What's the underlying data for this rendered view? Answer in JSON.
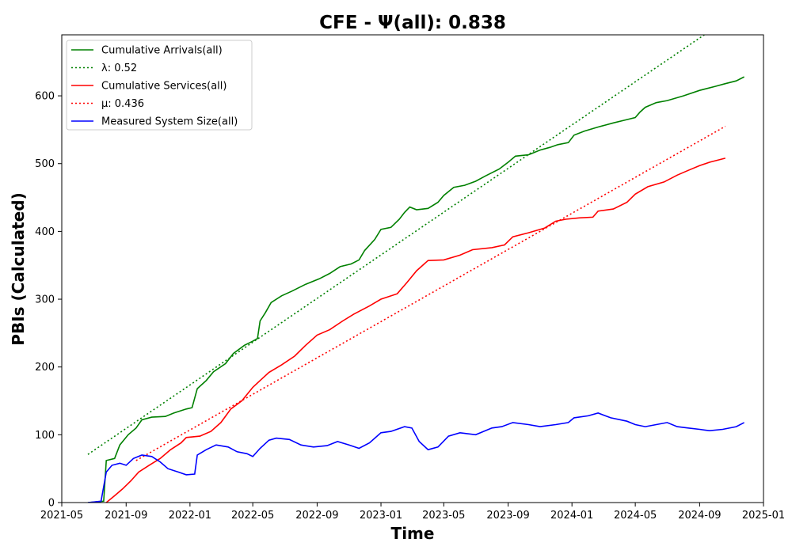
{
  "chart_data": {
    "type": "line",
    "title": "CFE -  Ψ(all): 0.838",
    "xlabel": "Time",
    "ylabel": "PBIs (Calculated)",
    "xlim": [
      "2021-05-01",
      "2025-01-01"
    ],
    "ylim": [
      0,
      690
    ],
    "x_ticks": [
      "2021-05",
      "2021-09",
      "2022-01",
      "2022-05",
      "2022-09",
      "2023-01",
      "2023-05",
      "2023-09",
      "2024-01",
      "2024-05",
      "2024-09",
      "2025-01"
    ],
    "y_ticks": [
      0,
      100,
      200,
      300,
      400,
      500,
      600
    ],
    "grid": false,
    "legend_position": "top-left",
    "series": [
      {
        "name": "Cumulative Arrivals(all)",
        "style": "solid",
        "color": "#008000",
        "points": [
          [
            "2021-06-20",
            0
          ],
          [
            "2021-07-20",
            2
          ],
          [
            "2021-07-25",
            62
          ],
          [
            "2021-08-10",
            65
          ],
          [
            "2021-08-20",
            85
          ],
          [
            "2021-09-05",
            100
          ],
          [
            "2021-09-20",
            110
          ],
          [
            "2021-10-01",
            122
          ],
          [
            "2021-10-20",
            126
          ],
          [
            "2021-11-15",
            127
          ],
          [
            "2021-12-01",
            132
          ],
          [
            "2021-12-25",
            138
          ],
          [
            "2022-01-05",
            140
          ],
          [
            "2022-01-15",
            168
          ],
          [
            "2022-02-01",
            180
          ],
          [
            "2022-02-15",
            193
          ],
          [
            "2022-03-10",
            205
          ],
          [
            "2022-03-25",
            220
          ],
          [
            "2022-04-15",
            232
          ],
          [
            "2022-05-01",
            238
          ],
          [
            "2022-05-10",
            242
          ],
          [
            "2022-05-15",
            268
          ],
          [
            "2022-05-25",
            280
          ],
          [
            "2022-06-05",
            295
          ],
          [
            "2022-06-25",
            305
          ],
          [
            "2022-07-15",
            312
          ],
          [
            "2022-08-10",
            322
          ],
          [
            "2022-09-05",
            330
          ],
          [
            "2022-09-25",
            338
          ],
          [
            "2022-10-15",
            348
          ],
          [
            "2022-11-05",
            352
          ],
          [
            "2022-11-20",
            358
          ],
          [
            "2022-12-01",
            372
          ],
          [
            "2022-12-20",
            388
          ],
          [
            "2023-01-01",
            403
          ],
          [
            "2023-01-20",
            406
          ],
          [
            "2023-02-05",
            418
          ],
          [
            "2023-02-15",
            428
          ],
          [
            "2023-02-25",
            436
          ],
          [
            "2023-03-10",
            432
          ],
          [
            "2023-04-01",
            434
          ],
          [
            "2023-04-20",
            443
          ],
          [
            "2023-05-01",
            453
          ],
          [
            "2023-05-20",
            465
          ],
          [
            "2023-06-10",
            468
          ],
          [
            "2023-07-01",
            474
          ],
          [
            "2023-07-20",
            482
          ],
          [
            "2023-08-15",
            492
          ],
          [
            "2023-09-01",
            502
          ],
          [
            "2023-09-15",
            511
          ],
          [
            "2023-10-10",
            513
          ],
          [
            "2023-11-01",
            520
          ],
          [
            "2023-11-20",
            524
          ],
          [
            "2023-12-05",
            528
          ],
          [
            "2023-12-25",
            531
          ],
          [
            "2024-01-05",
            542
          ],
          [
            "2024-01-25",
            548
          ],
          [
            "2024-02-20",
            554
          ],
          [
            "2024-03-20",
            560
          ],
          [
            "2024-04-15",
            565
          ],
          [
            "2024-05-01",
            568
          ],
          [
            "2024-05-10",
            576
          ],
          [
            "2024-05-20",
            583
          ],
          [
            "2024-06-10",
            590
          ],
          [
            "2024-07-01",
            593
          ],
          [
            "2024-08-01",
            600
          ],
          [
            "2024-09-01",
            608
          ],
          [
            "2024-10-01",
            614
          ],
          [
            "2024-10-20",
            618
          ],
          [
            "2024-11-10",
            622
          ],
          [
            "2024-11-25",
            628
          ]
        ]
      },
      {
        "name": "λ: 0.52",
        "style": "dotted",
        "color": "#008000",
        "points": [
          [
            "2021-06-20",
            71
          ],
          [
            "2024-11-25",
            730
          ]
        ]
      },
      {
        "name": "Cumulative Services(all)",
        "style": "solid",
        "color": "#ff0000",
        "points": [
          [
            "2021-07-25",
            0
          ],
          [
            "2021-08-10",
            10
          ],
          [
            "2021-08-25",
            20
          ],
          [
            "2021-09-10",
            32
          ],
          [
            "2021-09-25",
            45
          ],
          [
            "2021-10-15",
            55
          ],
          [
            "2021-11-05",
            65
          ],
          [
            "2021-11-25",
            78
          ],
          [
            "2021-12-15",
            88
          ],
          [
            "2021-12-25",
            96
          ],
          [
            "2022-01-20",
            98
          ],
          [
            "2022-02-10",
            105
          ],
          [
            "2022-03-01",
            118
          ],
          [
            "2022-03-20",
            138
          ],
          [
            "2022-04-10",
            150
          ],
          [
            "2022-05-01",
            170
          ],
          [
            "2022-05-15",
            180
          ],
          [
            "2022-06-01",
            192
          ],
          [
            "2022-06-25",
            203
          ],
          [
            "2022-07-20",
            216
          ],
          [
            "2022-08-10",
            232
          ],
          [
            "2022-09-01",
            247
          ],
          [
            "2022-09-25",
            255
          ],
          [
            "2022-10-20",
            268
          ],
          [
            "2022-11-10",
            278
          ],
          [
            "2022-12-10",
            290
          ],
          [
            "2023-01-01",
            300
          ],
          [
            "2023-02-01",
            308
          ],
          [
            "2023-02-20",
            325
          ],
          [
            "2023-03-10",
            342
          ],
          [
            "2023-04-01",
            357
          ],
          [
            "2023-05-01",
            358
          ],
          [
            "2023-06-01",
            365
          ],
          [
            "2023-06-25",
            373
          ],
          [
            "2023-08-01",
            376
          ],
          [
            "2023-08-25",
            380
          ],
          [
            "2023-09-10",
            392
          ],
          [
            "2023-10-10",
            398
          ],
          [
            "2023-11-10",
            405
          ],
          [
            "2023-12-01",
            415
          ],
          [
            "2023-12-20",
            418
          ],
          [
            "2024-01-15",
            420
          ],
          [
            "2024-02-10",
            421
          ],
          [
            "2024-02-20",
            430
          ],
          [
            "2024-03-20",
            433
          ],
          [
            "2024-04-15",
            443
          ],
          [
            "2024-05-01",
            455
          ],
          [
            "2024-05-25",
            466
          ],
          [
            "2024-06-25",
            473
          ],
          [
            "2024-07-20",
            483
          ],
          [
            "2024-08-10",
            490
          ],
          [
            "2024-09-01",
            497
          ],
          [
            "2024-09-20",
            502
          ],
          [
            "2024-10-20",
            508
          ]
        ]
      },
      {
        "name": "μ: 0.436",
        "style": "dotted",
        "color": "#ff0000",
        "points": [
          [
            "2021-09-20",
            62
          ],
          [
            "2024-10-20",
            555
          ]
        ]
      },
      {
        "name": "Measured System Size(all)",
        "style": "solid",
        "color": "#0000ff",
        "points": [
          [
            "2021-06-20",
            0
          ],
          [
            "2021-07-15",
            2
          ],
          [
            "2021-07-25",
            45
          ],
          [
            "2021-08-05",
            55
          ],
          [
            "2021-08-20",
            58
          ],
          [
            "2021-09-01",
            55
          ],
          [
            "2021-09-15",
            65
          ],
          [
            "2021-10-01",
            70
          ],
          [
            "2021-10-20",
            68
          ],
          [
            "2021-11-05",
            60
          ],
          [
            "2021-11-20",
            50
          ],
          [
            "2021-12-10",
            45
          ],
          [
            "2021-12-25",
            41
          ],
          [
            "2022-01-10",
            42
          ],
          [
            "2022-01-15",
            70
          ],
          [
            "2022-02-01",
            78
          ],
          [
            "2022-02-20",
            85
          ],
          [
            "2022-03-15",
            82
          ],
          [
            "2022-04-01",
            75
          ],
          [
            "2022-04-20",
            72
          ],
          [
            "2022-05-01",
            68
          ],
          [
            "2022-05-15",
            80
          ],
          [
            "2022-06-01",
            92
          ],
          [
            "2022-06-15",
            95
          ],
          [
            "2022-07-10",
            93
          ],
          [
            "2022-08-01",
            85
          ],
          [
            "2022-08-25",
            82
          ],
          [
            "2022-09-20",
            84
          ],
          [
            "2022-10-10",
            90
          ],
          [
            "2022-11-01",
            85
          ],
          [
            "2022-11-20",
            80
          ],
          [
            "2022-12-10",
            88
          ],
          [
            "2023-01-01",
            103
          ],
          [
            "2023-01-20",
            105
          ],
          [
            "2023-02-15",
            112
          ],
          [
            "2023-03-01",
            110
          ],
          [
            "2023-03-15",
            90
          ],
          [
            "2023-04-01",
            78
          ],
          [
            "2023-04-20",
            82
          ],
          [
            "2023-05-10",
            98
          ],
          [
            "2023-06-01",
            103
          ],
          [
            "2023-07-01",
            100
          ],
          [
            "2023-08-01",
            110
          ],
          [
            "2023-08-20",
            112
          ],
          [
            "2023-09-10",
            118
          ],
          [
            "2023-10-10",
            115
          ],
          [
            "2023-11-01",
            112
          ],
          [
            "2023-12-01",
            115
          ],
          [
            "2023-12-25",
            118
          ],
          [
            "2024-01-05",
            125
          ],
          [
            "2024-02-01",
            128
          ],
          [
            "2024-02-20",
            132
          ],
          [
            "2024-03-15",
            125
          ],
          [
            "2024-04-15",
            120
          ],
          [
            "2024-05-01",
            115
          ],
          [
            "2024-05-20",
            112
          ],
          [
            "2024-06-10",
            115
          ],
          [
            "2024-07-01",
            118
          ],
          [
            "2024-07-20",
            112
          ],
          [
            "2024-08-10",
            110
          ],
          [
            "2024-09-01",
            108
          ],
          [
            "2024-09-20",
            106
          ],
          [
            "2024-10-15",
            108
          ],
          [
            "2024-11-10",
            112
          ],
          [
            "2024-11-25",
            118
          ]
        ]
      }
    ]
  }
}
